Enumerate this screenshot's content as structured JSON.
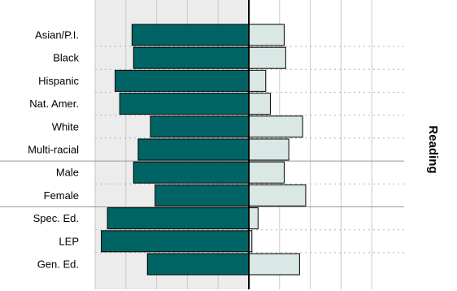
{
  "chart_data": {
    "type": "bar",
    "orientation": "horizontal-diverging",
    "side_label": "Reading",
    "categories": [
      "Asian/P.I.",
      "Black",
      "Hispanic",
      "Nat. Amer.",
      "White",
      "Multi-racial",
      "Male",
      "Female",
      "Spec. Ed.",
      "LEP",
      "Gen. Ed."
    ],
    "group_breaks_after": [
      5,
      7
    ],
    "x_range": [
      -5,
      4
    ],
    "grid": true,
    "series": [
      {
        "values": [
          -3.8,
          -3.75,
          -4.35,
          -4.2,
          -3.2,
          -3.6,
          -3.75,
          -3.05,
          -4.6,
          -4.8,
          -3.3
        ]
      },
      {
        "values": [
          1.15,
          1.2,
          0.55,
          0.7,
          1.75,
          1.3,
          1.15,
          1.85,
          0.3,
          0.1,
          1.65
        ]
      }
    ],
    "colors": {
      "negative_fill": "#006464",
      "positive_fill": "#d9e8e4",
      "bar_stroke": "#000000",
      "panel_shade": "#ececec",
      "grid_line": "#c8c8c8",
      "dotted_line": "#b4b4b4",
      "group_separator": "#999999",
      "zero_line": "#000000"
    }
  }
}
